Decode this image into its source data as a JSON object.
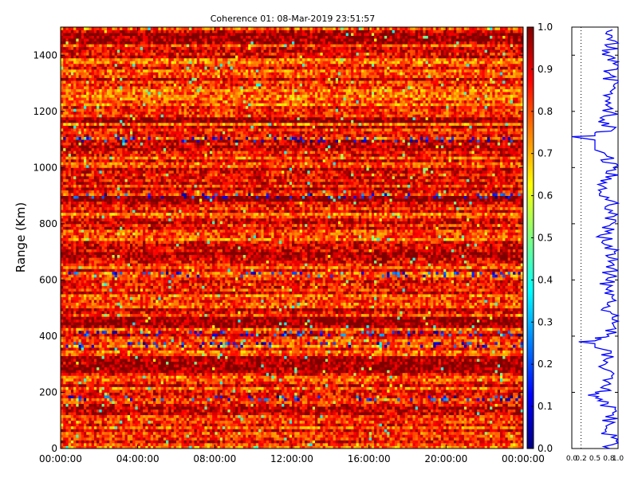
{
  "chart_data": {
    "type": "heatmap",
    "title": "Coherence 01: 08-Mar-2019 23:51:57",
    "ylabel": "Range (Km)",
    "xlabel": "",
    "ylim": [
      0,
      1500
    ],
    "x_tick_labels": [
      "00:00:00",
      "04:00:00",
      "08:00:00",
      "12:00:00",
      "16:00:00",
      "20:00:00",
      "00:00:00"
    ],
    "y_ticks": [
      0,
      200,
      400,
      600,
      800,
      1000,
      1200,
      1400
    ],
    "colorbar": {
      "colormap": "jet",
      "range": [
        0.0,
        1.0
      ],
      "ticks": [
        0.0,
        0.1,
        0.2,
        0.3,
        0.4,
        0.5,
        0.6,
        0.7,
        0.8,
        0.9,
        1.0
      ],
      "tick_labels": [
        "0.0",
        "0.1",
        "0.2",
        "0.3",
        "0.4",
        "0.5",
        "0.6",
        "0.7",
        "0.8",
        "0.9",
        "1.0"
      ]
    },
    "grid": false,
    "z_description_values": {
      "typical_coherence": 0.85,
      "low_coherence_ranges_km": [
        1100,
        900,
        620,
        410,
        370,
        180
      ],
      "high_coherence_bands_km": [
        1470,
        1450,
        1170,
        890,
        690,
        460,
        440,
        320,
        300,
        280
      ]
    },
    "profile": {
      "type": "line",
      "color": "#0000ff",
      "xlim": [
        0.0,
        1.0
      ],
      "x_tick_labels": [
        "0.0",
        "0.2",
        "0.5",
        "0.8",
        "1.0"
      ],
      "reference_line_x": 0.2,
      "reference_line_style": "dotted",
      "points": [
        [
          0.82,
          0
        ],
        [
          0.86,
          40
        ],
        [
          0.74,
          80
        ],
        [
          0.9,
          120
        ],
        [
          0.78,
          160
        ],
        [
          0.35,
          190
        ],
        [
          0.8,
          210
        ],
        [
          0.88,
          250
        ],
        [
          0.72,
          300
        ],
        [
          0.85,
          340
        ],
        [
          0.15,
          380
        ],
        [
          0.8,
          400
        ],
        [
          0.9,
          440
        ],
        [
          0.86,
          480
        ],
        [
          0.78,
          520
        ],
        [
          0.88,
          560
        ],
        [
          0.74,
          600
        ],
        [
          0.9,
          640
        ],
        [
          0.8,
          680
        ],
        [
          0.86,
          720
        ],
        [
          0.62,
          760
        ],
        [
          0.86,
          800
        ],
        [
          0.8,
          840
        ],
        [
          0.9,
          880
        ],
        [
          0.58,
          920
        ],
        [
          0.86,
          960
        ],
        [
          0.9,
          1000
        ],
        [
          0.76,
          1040
        ],
        [
          0.0,
          1110
        ],
        [
          0.85,
          1130
        ],
        [
          0.7,
          1170
        ],
        [
          0.88,
          1210
        ],
        [
          0.82,
          1250
        ],
        [
          0.9,
          1290
        ],
        [
          0.84,
          1330
        ],
        [
          0.9,
          1370
        ],
        [
          0.8,
          1410
        ],
        [
          0.94,
          1450
        ],
        [
          0.88,
          1490
        ]
      ]
    }
  },
  "colors": {
    "jet_stops": [
      "#00007f",
      "#0000ff",
      "#007fff",
      "#00ffff",
      "#7fff7f",
      "#ffff00",
      "#ff7f00",
      "#ff0000",
      "#7f0000"
    ]
  }
}
